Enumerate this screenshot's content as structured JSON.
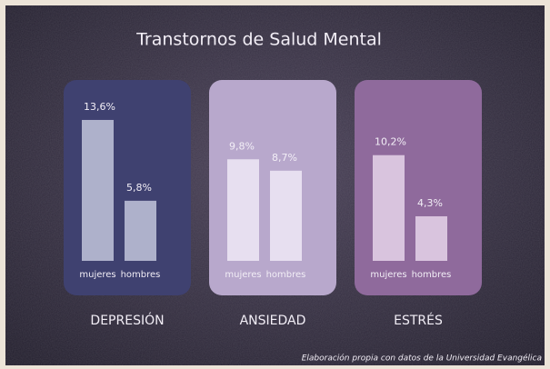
{
  "chart_data": {
    "type": "bar",
    "title": "Transtornos de Salud Mental",
    "categories": [
      "DEPRESIÓN",
      "ANSIEDAD",
      "ESTRÉS"
    ],
    "series": [
      {
        "name": "mujeres",
        "values": [
          13.6,
          9.8,
          10.2
        ],
        "value_labels": [
          "13,6%",
          "9,8%",
          "10,2%"
        ]
      },
      {
        "name": "hombres",
        "values": [
          5.8,
          8.7,
          4.3
        ],
        "value_labels": [
          "5,8%",
          "8,7%",
          "4,3%"
        ]
      }
    ],
    "panel_colors": [
      "#3f4170",
      "#b8a8cc",
      "#8f6a9c"
    ],
    "bar_colors": [
      "#aeb1cb",
      "#e7dff0",
      "#d9c4de"
    ],
    "source": "Elaboración propia con datos de la Universidad Evangélica"
  }
}
